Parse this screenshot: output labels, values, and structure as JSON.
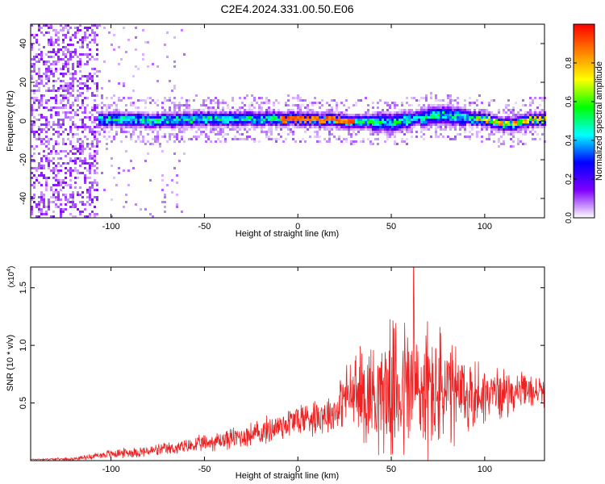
{
  "title": "C2E4.2024.331.00.50.E06",
  "chart_data": [
    {
      "type": "heatmap",
      "xlabel": "Height of straight line (km)",
      "ylabel": "Frequency (Hz)",
      "xlim": [
        -143,
        132
      ],
      "ylim": [
        -50,
        50
      ],
      "x_ticks": [
        -100,
        -50,
        0,
        50,
        100
      ],
      "x_tick_labels": [
        "-100",
        "-50",
        "0",
        "50",
        "100"
      ],
      "y_ticks": [
        40,
        20,
        0,
        -20,
        -40
      ],
      "y_tick_labels": [
        "40",
        "20",
        "0",
        "-20",
        "-40"
      ],
      "grid": false,
      "colorbar": {
        "label": "Normalized spectral amplitude",
        "range": [
          0.0,
          1.0
        ],
        "ticks": [
          0.0,
          0.2,
          0.4,
          0.6,
          0.8
        ],
        "tick_labels": [
          "0.0",
          "0.2",
          "0.4",
          "0.6",
          "0.8"
        ],
        "colors": [
          "#ffffff",
          "#7f00ff",
          "#0000ff",
          "#00ffff",
          "#00ff00",
          "#ffff00",
          "#ff8000",
          "#ff0000"
        ]
      },
      "band_center_hz": [
        {
          "x": -115,
          "f": 0
        },
        {
          "x": -100,
          "f": 1
        },
        {
          "x": -80,
          "f": 0
        },
        {
          "x": -50,
          "f": 1
        },
        {
          "x": -20,
          "f": 1
        },
        {
          "x": 0,
          "f": 1
        },
        {
          "x": 25,
          "f": 0
        },
        {
          "x": 50,
          "f": -1
        },
        {
          "x": 75,
          "f": 3
        },
        {
          "x": 100,
          "f": 1
        },
        {
          "x": 110,
          "f": -2
        },
        {
          "x": 130,
          "f": 1
        }
      ]
    },
    {
      "type": "line",
      "xlabel": "Height of straight line (km)",
      "ylabel": "SNR (10 * v/v)",
      "scale_label": "(x10",
      "scale_exponent": "4",
      "xlim": [
        -143,
        132
      ],
      "ylim": [
        0,
        1.68
      ],
      "x_ticks": [
        -100,
        -50,
        0,
        50,
        100
      ],
      "x_tick_labels": [
        "-100",
        "-50",
        "0",
        "50",
        "100"
      ],
      "y_ticks": [
        0.5,
        1.0,
        1.5
      ],
      "y_tick_labels": [
        "0.5",
        "1.0",
        "1.5"
      ],
      "grid": false,
      "series": [
        {
          "color": "#ee2222",
          "envelope_x": [
            -143,
            -120,
            -100,
            -80,
            -60,
            -40,
            -20,
            0,
            20,
            25,
            35,
            45,
            55,
            60,
            65,
            75,
            85,
            100,
            120,
            132
          ],
          "envelope_mean": [
            0.01,
            0.015,
            0.06,
            0.08,
            0.12,
            0.18,
            0.24,
            0.36,
            0.42,
            0.56,
            0.58,
            0.6,
            0.62,
            0.62,
            0.6,
            0.6,
            0.55,
            0.58,
            0.6,
            0.6
          ],
          "envelope_spread": [
            0.005,
            0.01,
            0.03,
            0.04,
            0.05,
            0.07,
            0.09,
            0.12,
            0.14,
            0.2,
            0.35,
            0.4,
            0.5,
            0.55,
            0.52,
            0.45,
            0.35,
            0.2,
            0.12,
            0.1
          ],
          "peak_value": 1.68,
          "peak_x": 62
        }
      ]
    }
  ]
}
